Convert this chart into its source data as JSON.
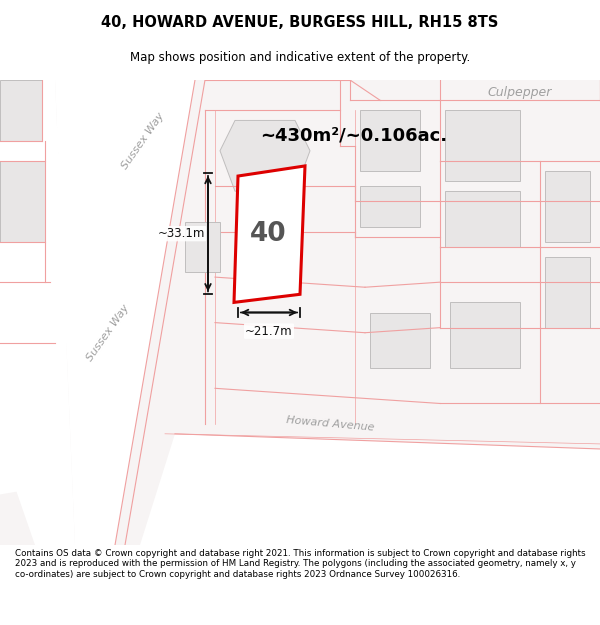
{
  "title": "40, HOWARD AVENUE, BURGESS HILL, RH15 8TS",
  "subtitle": "Map shows position and indicative extent of the property.",
  "area_text": "~430m²/~0.106ac.",
  "property_number": "40",
  "dim1": "~33.1m",
  "dim2": "~21.7m",
  "street_label1": "Sussex Way",
  "street_label2": "Sussex Way",
  "street_label3": "Howard Avenue",
  "corner_label": "Culpepper",
  "footer": "Contains OS data © Crown copyright and database right 2021. This information is subject to Crown copyright and database rights 2023 and is reproduced with the permission of HM Land Registry. The polygons (including the associated geometry, namely x, y co-ordinates) are subject to Crown copyright and database rights 2023 Ordnance Survey 100026316.",
  "map_bg": "#f7f5f5",
  "block_color": "#e8e6e6",
  "road_color": "#ffffff",
  "property_fill": "#ffffff",
  "property_outline": "#dd0000",
  "parcel_outline": "#f0a0a0",
  "gray_outline": "#c0bebe",
  "title_color": "#000000",
  "footer_color": "#000000",
  "dim_color": "#111111",
  "label_color": "#a0a0a0"
}
